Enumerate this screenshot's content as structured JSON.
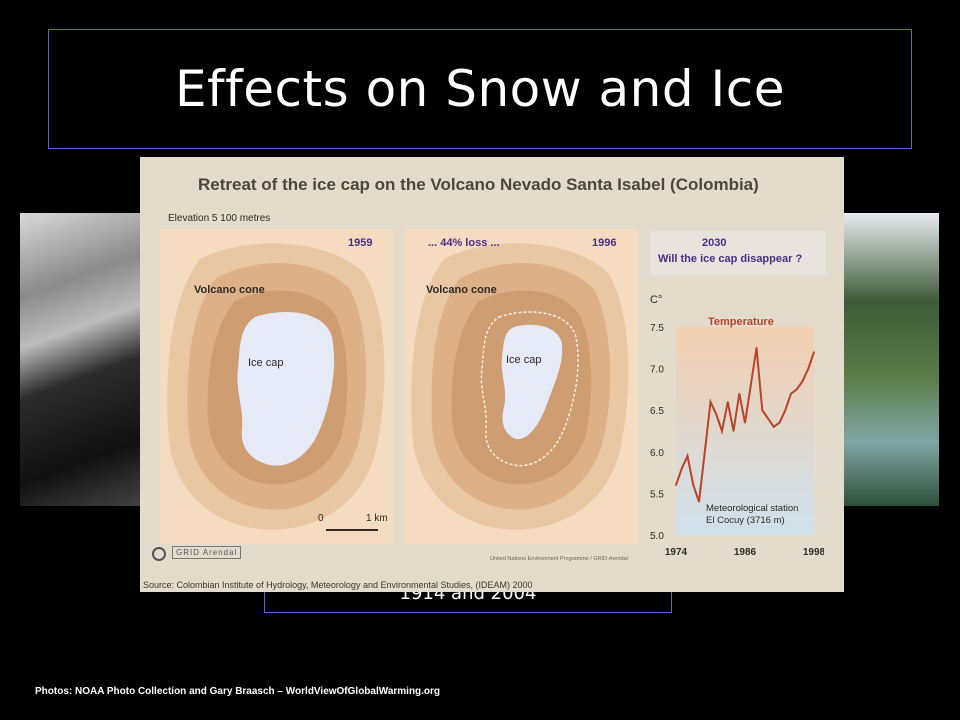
{
  "slide": {
    "title": "Effects on Snow and Ice",
    "caption": "1914 and 2004",
    "credits": "Photos: NOAA Photo Collection and Gary Braasch – WorldViewOfGlobalWarming.org"
  },
  "figure": {
    "title": "Retreat of the ice cap on the Volcano Nevado Santa Isabel (Colombia)",
    "elevation": "Elevation 5 100 metres",
    "panel1": {
      "year": "1959",
      "cone_label": "Volcano cone",
      "cap_label": "Ice cap"
    },
    "panel2": {
      "year": "1996",
      "loss": "... 44% loss ...",
      "cone_label": "Volcano cone",
      "cap_label": "Ice cap"
    },
    "panel3": {
      "year": "2030",
      "question": "Will the ice cap disappear ?"
    },
    "scale": {
      "start": "0",
      "end": "1 km"
    },
    "logo_text": "GRID Arendal",
    "small_credit": "United Nations Environment Programme / GRID-Arendal",
    "source": "Source: Colombian Institute of Hydrology, Meteorology and Environmental Studies, (IDEAM) 2000"
  },
  "chart_data": {
    "type": "line",
    "title": "Temperature",
    "ylabel": "C°",
    "ylim": [
      5.0,
      7.5
    ],
    "y_ticks": [
      "7.5",
      "7.0",
      "6.5",
      "6.0",
      "5.5",
      "5.0"
    ],
    "x_ticks": [
      "1974",
      "1986",
      "1998"
    ],
    "xlim": [
      1974,
      1998
    ],
    "annotation": [
      "Meteorological station",
      "El Cocuy (3716 m)"
    ],
    "colors": {
      "line": "#b8452a",
      "fill_top": "#f3cfb0",
      "fill_bottom": "#cfe1ec"
    },
    "series": [
      {
        "x": [
          1974,
          1975,
          1976,
          1977,
          1978,
          1979,
          1980,
          1981,
          1982,
          1983,
          1984,
          1985,
          1986,
          1987,
          1988,
          1989,
          1990,
          1991,
          1992,
          1993,
          1994,
          1995,
          1996,
          1997,
          1998
        ],
        "values": [
          5.6,
          5.8,
          5.95,
          5.6,
          5.4,
          6.0,
          6.6,
          6.45,
          6.25,
          6.6,
          6.25,
          6.7,
          6.35,
          6.8,
          7.25,
          6.5,
          6.4,
          6.3,
          6.35,
          6.5,
          6.7,
          6.75,
          6.85,
          7.0,
          7.2
        ]
      }
    ]
  }
}
